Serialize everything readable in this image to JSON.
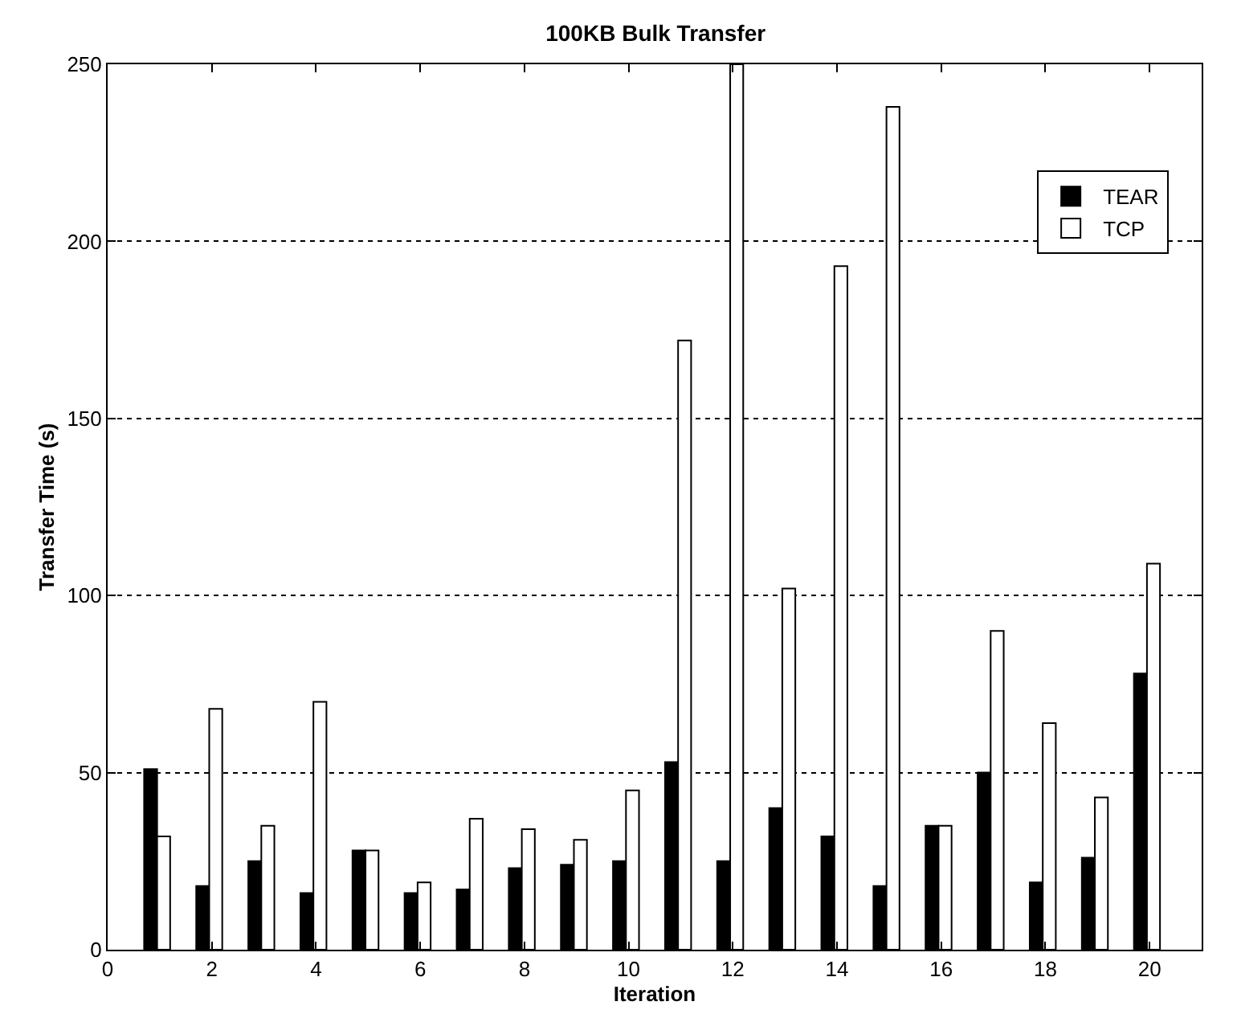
{
  "chart_data": {
    "type": "bar",
    "title": "100KB Bulk Transfer",
    "xlabel": "Iteration",
    "ylabel": "Transfer Time (s)",
    "x": [
      1,
      2,
      3,
      4,
      5,
      6,
      7,
      8,
      9,
      10,
      11,
      12,
      13,
      14,
      15,
      16,
      17,
      18,
      19,
      20
    ],
    "series": [
      {
        "name": "TEAR",
        "color": "#000000",
        "values": [
          51,
          18,
          25,
          16,
          28,
          16,
          17,
          23,
          24,
          25,
          53,
          25,
          40,
          32,
          18,
          35,
          50,
          19,
          26,
          78
        ]
      },
      {
        "name": "TCP",
        "color": "#ffffff",
        "values": [
          32,
          68,
          35,
          70,
          28,
          19,
          37,
          34,
          31,
          45,
          172,
          250,
          102,
          193,
          238,
          35,
          90,
          64,
          43,
          109
        ]
      }
    ],
    "xlim": [
      0,
      21
    ],
    "xticks": [
      0,
      2,
      4,
      6,
      8,
      10,
      12,
      14,
      16,
      18,
      20
    ],
    "ylim": [
      0,
      250
    ],
    "yticks": [
      0,
      50,
      100,
      150,
      200,
      250
    ],
    "grid": "y",
    "legend": "top right"
  }
}
